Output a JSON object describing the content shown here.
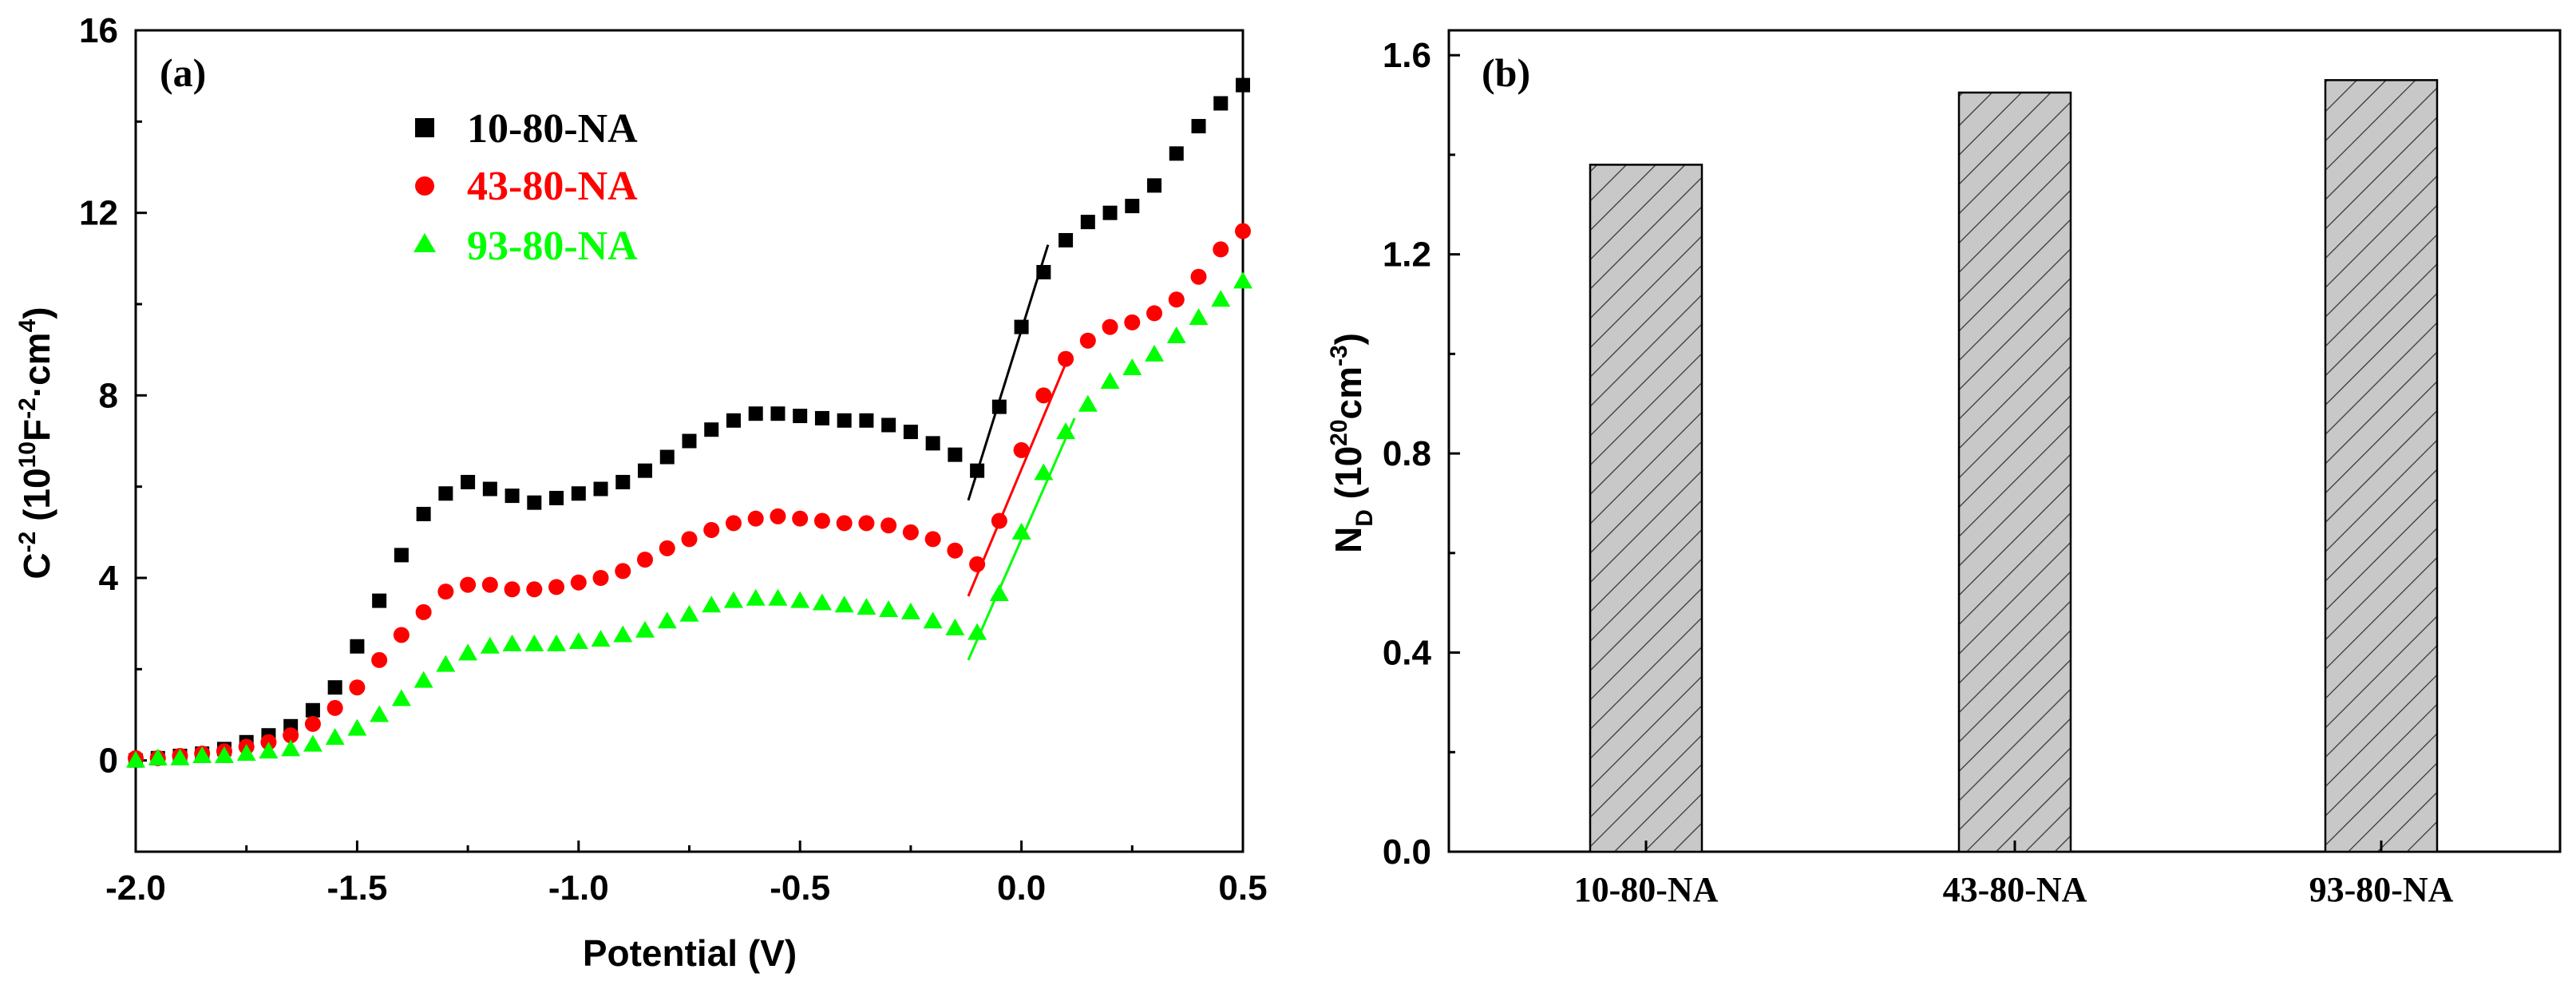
{
  "chart_data": [
    {
      "type": "scatter",
      "panel_label": "(a)",
      "xlabel": "Potential (V)",
      "ylabel": "C",
      "ylabel_sup1": "-2",
      "ylabel_rest_open": " (10",
      "ylabel_sup2": "10",
      "ylabel_mid": "F",
      "ylabel_sup3": "-2",
      "ylabel_mid2": "·cm",
      "ylabel_sup4": "4",
      "ylabel_close": ")",
      "xlim": [
        -2.0,
        0.5
      ],
      "ylim": [
        -2,
        16
      ],
      "x_ticks": [
        "-2.0",
        "-1.5",
        "-1.0",
        "-0.5",
        "0.0",
        "0.5"
      ],
      "y_ticks": [
        "0",
        "4",
        "8",
        "12",
        "16"
      ],
      "series": [
        {
          "name": "10-80-NA",
          "color": "#000000",
          "marker": "square",
          "x": [
            -2.0,
            -1.95,
            -1.9,
            -1.85,
            -1.8,
            -1.75,
            -1.7,
            -1.65,
            -1.6,
            -1.55,
            -1.5,
            -1.45,
            -1.4,
            -1.35,
            -1.3,
            -1.25,
            -1.2,
            -1.15,
            -1.1,
            -1.05,
            -1.0,
            -0.95,
            -0.9,
            -0.85,
            -0.8,
            -0.75,
            -0.7,
            -0.65,
            -0.6,
            -0.55,
            -0.5,
            -0.45,
            -0.4,
            -0.35,
            -0.3,
            -0.25,
            -0.2,
            -0.15,
            -0.1,
            -0.05,
            0.0,
            0.05,
            0.1,
            0.15,
            0.2,
            0.25,
            0.3,
            0.35,
            0.4,
            0.45,
            0.5
          ],
          "y": [
            0.0,
            0.05,
            0.1,
            0.15,
            0.25,
            0.4,
            0.55,
            0.75,
            1.1,
            1.6,
            2.5,
            3.5,
            4.5,
            5.4,
            5.85,
            6.1,
            5.95,
            5.8,
            5.65,
            5.75,
            5.85,
            5.95,
            6.1,
            6.35,
            6.65,
            7.0,
            7.25,
            7.45,
            7.6,
            7.6,
            7.55,
            7.5,
            7.45,
            7.45,
            7.35,
            7.2,
            6.95,
            6.7,
            6.35,
            7.75,
            9.5,
            10.7,
            11.4,
            11.8,
            12.0,
            12.15,
            12.6,
            13.3,
            13.9,
            14.4,
            14.8
          ]
        },
        {
          "name": "43-80-NA",
          "color": "#ff0000",
          "marker": "circle",
          "x": [
            -2.0,
            -1.95,
            -1.9,
            -1.85,
            -1.8,
            -1.75,
            -1.7,
            -1.65,
            -1.6,
            -1.55,
            -1.5,
            -1.45,
            -1.4,
            -1.35,
            -1.3,
            -1.25,
            -1.2,
            -1.15,
            -1.1,
            -1.05,
            -1.0,
            -0.95,
            -0.9,
            -0.85,
            -0.8,
            -0.75,
            -0.7,
            -0.65,
            -0.6,
            -0.55,
            -0.5,
            -0.45,
            -0.4,
            -0.35,
            -0.3,
            -0.25,
            -0.2,
            -0.15,
            -0.1,
            -0.05,
            0.0,
            0.05,
            0.1,
            0.15,
            0.2,
            0.25,
            0.3,
            0.35,
            0.4,
            0.45,
            0.5
          ],
          "y": [
            0.05,
            0.05,
            0.1,
            0.15,
            0.2,
            0.3,
            0.4,
            0.55,
            0.8,
            1.15,
            1.6,
            2.2,
            2.75,
            3.25,
            3.7,
            3.85,
            3.85,
            3.75,
            3.75,
            3.8,
            3.9,
            4.0,
            4.15,
            4.4,
            4.65,
            4.85,
            5.05,
            5.2,
            5.3,
            5.35,
            5.3,
            5.25,
            5.2,
            5.2,
            5.15,
            5.0,
            4.85,
            4.6,
            4.3,
            5.25,
            6.8,
            8.0,
            8.8,
            9.2,
            9.5,
            9.6,
            9.8,
            10.1,
            10.6,
            11.2,
            11.6
          ]
        },
        {
          "name": "93-80-NA",
          "color": "#00ff00",
          "marker": "triangle",
          "x": [
            -2.0,
            -1.95,
            -1.9,
            -1.85,
            -1.8,
            -1.75,
            -1.7,
            -1.65,
            -1.6,
            -1.55,
            -1.5,
            -1.45,
            -1.4,
            -1.35,
            -1.3,
            -1.25,
            -1.2,
            -1.15,
            -1.1,
            -1.05,
            -1.0,
            -0.95,
            -0.9,
            -0.85,
            -0.8,
            -0.75,
            -0.7,
            -0.65,
            -0.6,
            -0.55,
            -0.5,
            -0.45,
            -0.4,
            -0.35,
            -0.3,
            -0.25,
            -0.2,
            -0.15,
            -0.1,
            -0.05,
            0.0,
            0.05,
            0.1,
            0.15,
            0.2,
            0.25,
            0.3,
            0.35,
            0.4,
            0.45,
            0.5
          ],
          "y": [
            0.0,
            0.05,
            0.05,
            0.1,
            0.1,
            0.15,
            0.2,
            0.25,
            0.35,
            0.5,
            0.7,
            1.0,
            1.35,
            1.75,
            2.1,
            2.35,
            2.5,
            2.55,
            2.55,
            2.55,
            2.6,
            2.65,
            2.75,
            2.85,
            3.05,
            3.2,
            3.4,
            3.5,
            3.55,
            3.55,
            3.5,
            3.45,
            3.4,
            3.35,
            3.3,
            3.25,
            3.05,
            2.9,
            2.8,
            3.65,
            5.0,
            6.3,
            7.2,
            7.8,
            8.3,
            8.6,
            8.9,
            9.3,
            9.7,
            10.1,
            10.5
          ]
        }
      ],
      "fit_lines": [
        {
          "series": "10-80-NA",
          "x": [
            -0.12,
            0.06
          ],
          "y": [
            5.7,
            11.3
          ]
        },
        {
          "series": "43-80-NA",
          "x": [
            -0.12,
            0.1
          ],
          "y": [
            3.6,
            8.7
          ]
        },
        {
          "series": "93-80-NA",
          "x": [
            -0.12,
            0.12
          ],
          "y": [
            2.2,
            7.5
          ]
        }
      ],
      "legend": [
        "10-80-NA",
        "43-80-NA",
        "93-80-NA"
      ]
    },
    {
      "type": "bar",
      "panel_label": "(b)",
      "ylabel": "N",
      "ylabel_sub": "D",
      "ylabel_rest_open": " (10",
      "ylabel_sup1": "20",
      "ylabel_mid": "cm",
      "ylabel_sup2": "-3",
      "ylabel_close": ")",
      "categories": [
        "10-80-NA",
        "43-80-NA",
        "93-80-NA"
      ],
      "values": [
        1.38,
        1.525,
        1.55
      ],
      "ylim": [
        0.0,
        1.65
      ],
      "y_ticks": [
        "0.0",
        "0.4",
        "0.8",
        "1.2",
        "1.6"
      ]
    }
  ]
}
